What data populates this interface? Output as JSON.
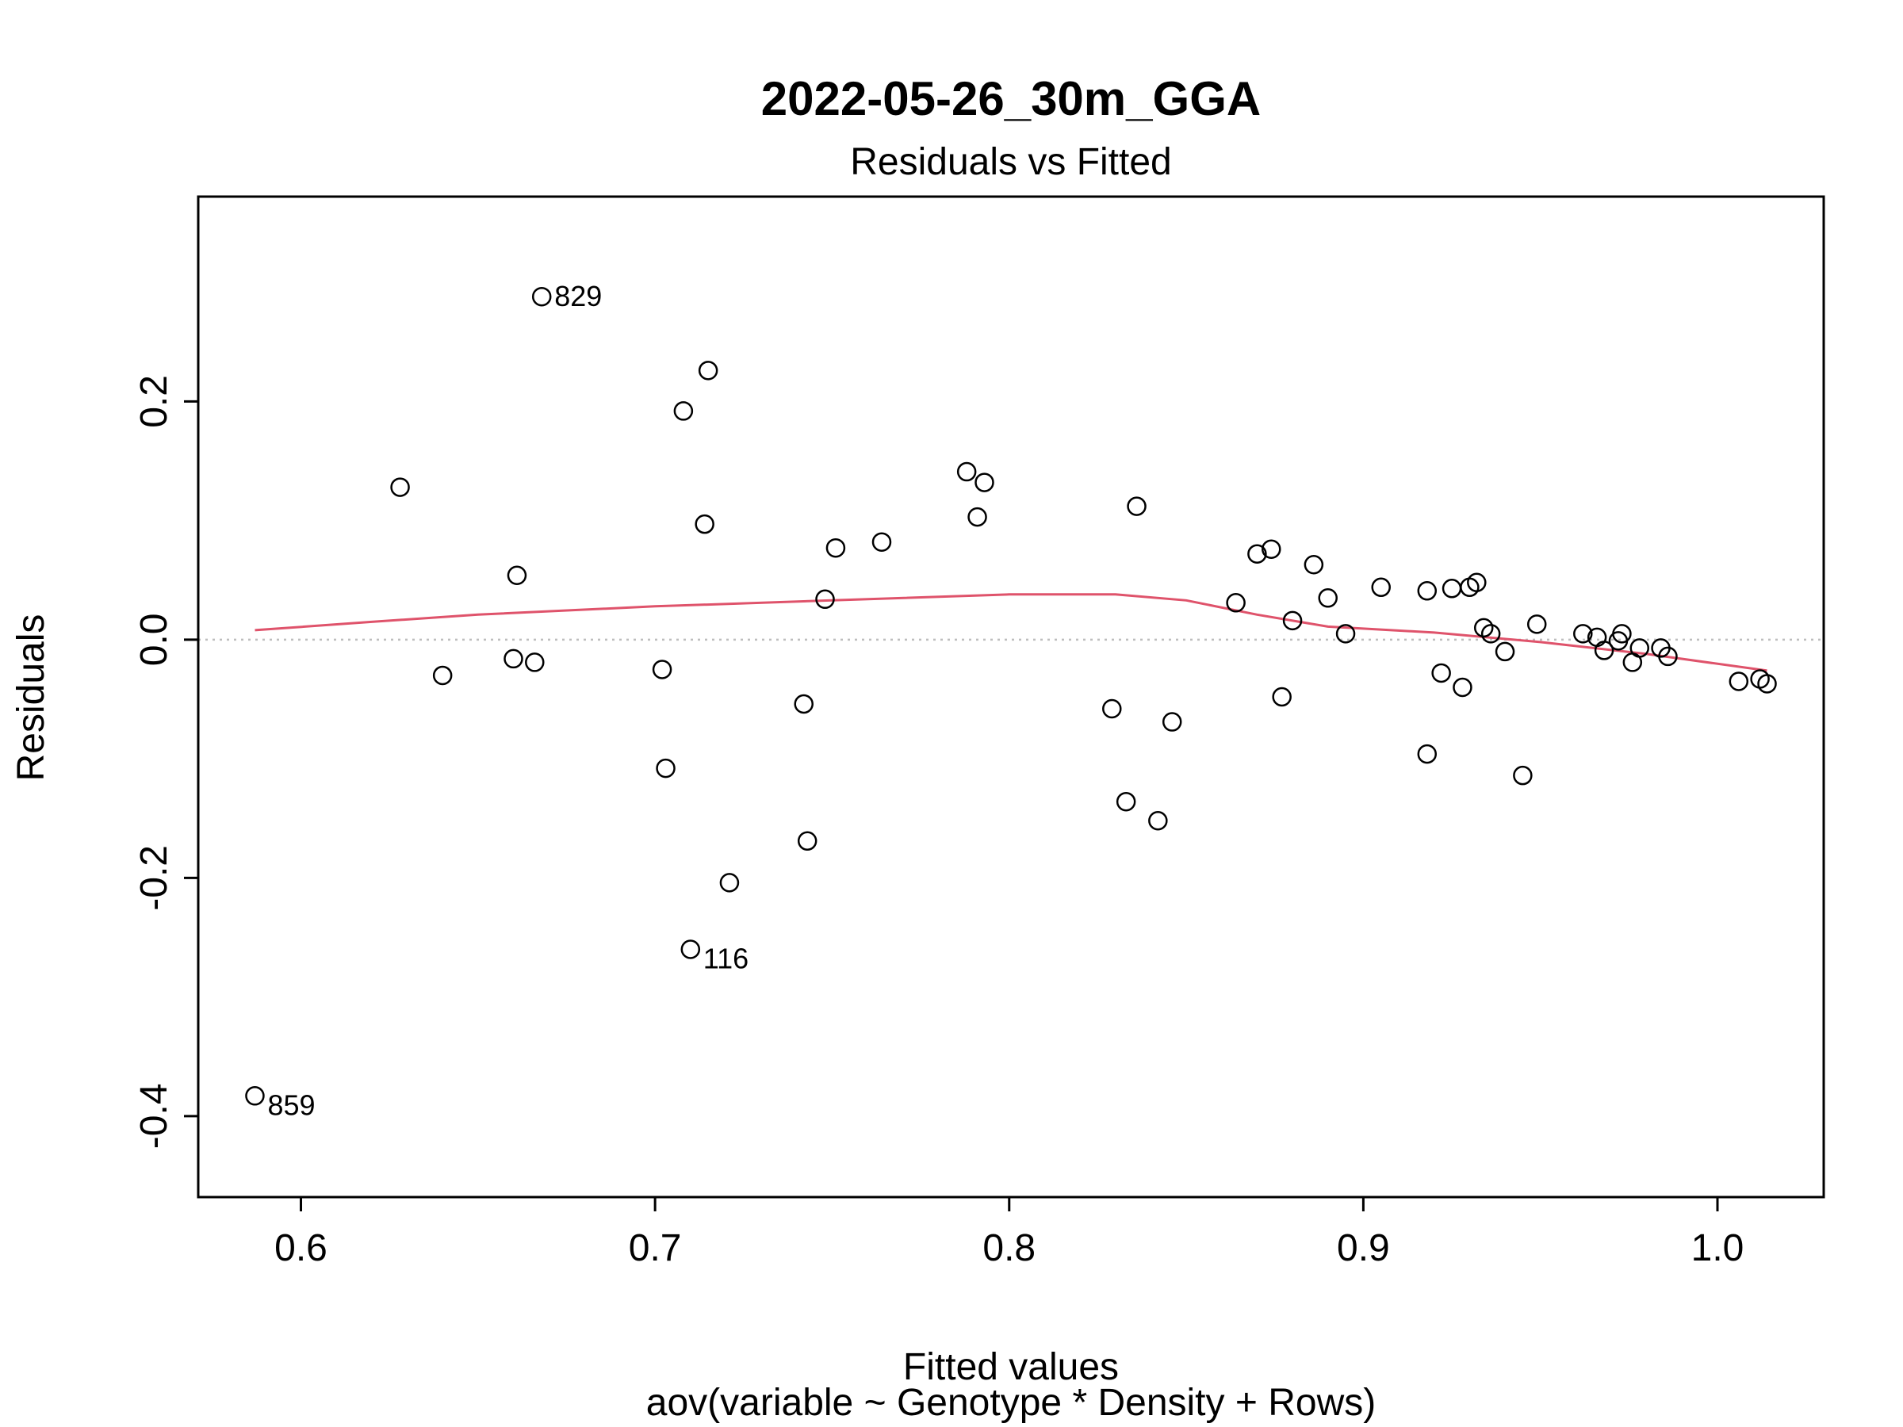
{
  "chart_data": {
    "type": "scatter",
    "title": "2022-05-26_30m_GGA",
    "subtitle": "Residuals vs Fitted",
    "xlabel": "Fitted values",
    "caption": "aov(variable ~ Genotype * Density + Rows)",
    "ylabel": "Residuals",
    "xlim": [
      0.571,
      1.03
    ],
    "ylim": [
      -0.468,
      0.372
    ],
    "x_ticks": [
      0.6,
      0.7,
      0.8,
      0.9,
      1.0
    ],
    "x_tick_labels": [
      "0.6",
      "0.7",
      "0.8",
      "0.9",
      "1.0"
    ],
    "y_ticks": [
      -0.4,
      -0.2,
      0.0,
      0.2
    ],
    "y_tick_labels": [
      "-0.4",
      "-0.2",
      "0.0",
      "0.2"
    ],
    "reference_line_y": 0,
    "point_color": "#000000",
    "smooth_color": "#DF536B",
    "reference_color": "#BEBEBE",
    "points": [
      [
        0.587,
        -0.383
      ],
      [
        0.628,
        0.128
      ],
      [
        0.64,
        -0.03
      ],
      [
        0.66,
        -0.016
      ],
      [
        0.661,
        0.054
      ],
      [
        0.666,
        -0.019
      ],
      [
        0.668,
        0.288
      ],
      [
        0.702,
        -0.025
      ],
      [
        0.703,
        -0.108
      ],
      [
        0.708,
        0.192
      ],
      [
        0.71,
        -0.26
      ],
      [
        0.714,
        0.097
      ],
      [
        0.715,
        0.226
      ],
      [
        0.721,
        -0.204
      ],
      [
        0.742,
        -0.054
      ],
      [
        0.743,
        -0.169
      ],
      [
        0.748,
        0.034
      ],
      [
        0.751,
        0.077
      ],
      [
        0.764,
        0.082
      ],
      [
        0.788,
        0.141
      ],
      [
        0.791,
        0.103
      ],
      [
        0.793,
        0.132
      ],
      [
        0.829,
        -0.058
      ],
      [
        0.833,
        -0.136
      ],
      [
        0.836,
        0.112
      ],
      [
        0.842,
        -0.152
      ],
      [
        0.846,
        -0.069
      ],
      [
        0.864,
        0.031
      ],
      [
        0.87,
        0.072
      ],
      [
        0.874,
        0.076
      ],
      [
        0.877,
        -0.048
      ],
      [
        0.88,
        0.016
      ],
      [
        0.886,
        0.063
      ],
      [
        0.89,
        0.035
      ],
      [
        0.895,
        0.005
      ],
      [
        0.905,
        0.044
      ],
      [
        0.918,
        0.041
      ],
      [
        0.918,
        -0.096
      ],
      [
        0.922,
        -0.028
      ],
      [
        0.925,
        0.043
      ],
      [
        0.928,
        -0.04
      ],
      [
        0.93,
        0.044
      ],
      [
        0.932,
        0.048
      ],
      [
        0.934,
        0.01
      ],
      [
        0.936,
        0.005
      ],
      [
        0.94,
        -0.01
      ],
      [
        0.945,
        -0.114
      ],
      [
        0.949,
        0.013
      ],
      [
        0.962,
        0.005
      ],
      [
        0.966,
        0.002
      ],
      [
        0.968,
        -0.009
      ],
      [
        0.972,
        -0.001
      ],
      [
        0.973,
        0.005
      ],
      [
        0.976,
        -0.019
      ],
      [
        0.978,
        -0.007
      ],
      [
        0.984,
        -0.007
      ],
      [
        0.986,
        -0.014
      ],
      [
        1.006,
        -0.035
      ],
      [
        1.012,
        -0.033
      ],
      [
        1.014,
        -0.037
      ]
    ],
    "labeled_points": [
      {
        "label": "829",
        "x": 0.668,
        "y": 0.288,
        "side": "right"
      },
      {
        "label": "116",
        "x": 0.71,
        "y": -0.26,
        "side": "right-below"
      },
      {
        "label": "859",
        "x": 0.587,
        "y": -0.383,
        "side": "right-below"
      }
    ],
    "smooth_line": [
      [
        0.587,
        0.008
      ],
      [
        0.62,
        0.015
      ],
      [
        0.65,
        0.021
      ],
      [
        0.7,
        0.028
      ],
      [
        0.75,
        0.033
      ],
      [
        0.8,
        0.038
      ],
      [
        0.83,
        0.038
      ],
      [
        0.85,
        0.033
      ],
      [
        0.87,
        0.021
      ],
      [
        0.89,
        0.011
      ],
      [
        0.92,
        0.006
      ],
      [
        0.95,
        -0.002
      ],
      [
        0.98,
        -0.012
      ],
      [
        1.014,
        -0.026
      ]
    ]
  }
}
